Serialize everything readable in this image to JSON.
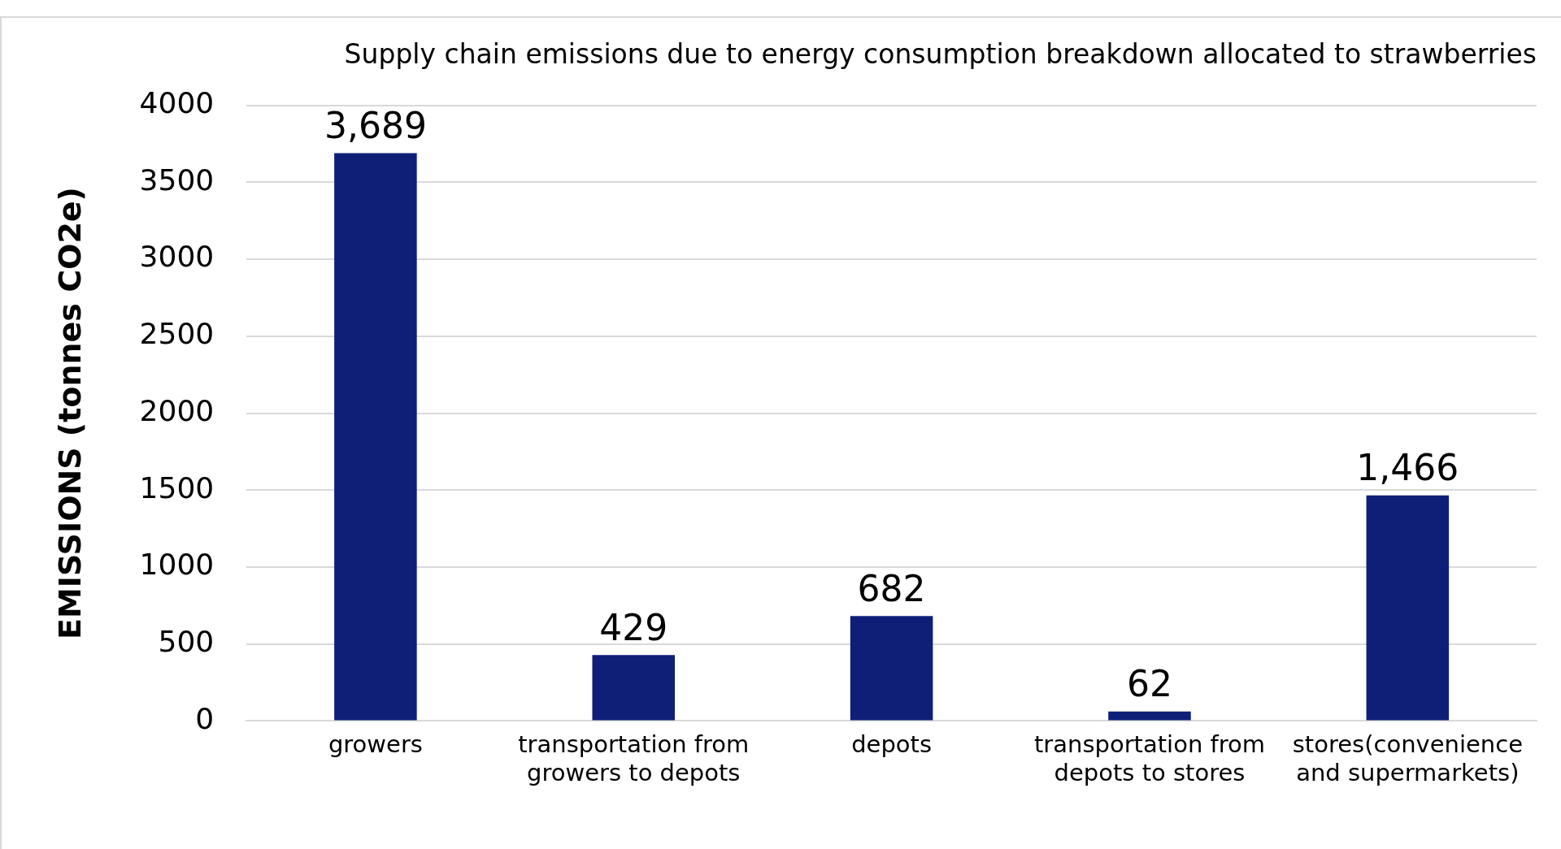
{
  "chart_data": {
    "type": "bar",
    "title": "Supply chain emissions due to energy consumption breakdown allocated to strawberries",
    "ylabel": "EMISSIONS (tonnes CO2e)",
    "categories": [
      "growers",
      "transportation from growers to depots",
      "depots",
      "transportation from depots to stores",
      "stores(convenience and supermarkets)"
    ],
    "values": [
      3689,
      429,
      682,
      62,
      1466
    ],
    "value_labels": [
      "3,689",
      "429",
      "682",
      "62",
      "1,466"
    ],
    "color": "#0f1f78",
    "ylim": [
      0,
      4000
    ],
    "yticks": [
      0,
      500,
      1000,
      1500,
      2000,
      2500,
      3000,
      3500,
      4000
    ],
    "grid": "y",
    "legend": false
  }
}
